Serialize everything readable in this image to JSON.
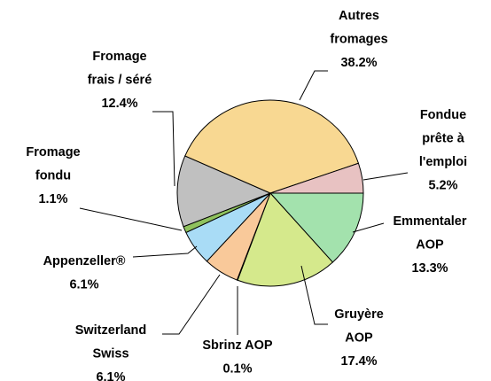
{
  "chart_data": {
    "type": "pie",
    "categories": [
      [
        "Emmentaler",
        "AOP"
      ],
      [
        "Gruyère",
        "AOP"
      ],
      [
        "Sbrinz AOP"
      ],
      [
        "Switzerland",
        "Swiss"
      ],
      [
        "Appenzeller®"
      ],
      [
        "Fromage",
        "fondu"
      ],
      [
        "Fromage",
        "frais / séré"
      ],
      [
        "Autres",
        "fromages"
      ],
      [
        "Fondue",
        "prête à",
        "l'emploi"
      ]
    ],
    "values": [
      13.3,
      17.4,
      0.1,
      6.1,
      6.1,
      1.1,
      12.4,
      38.2,
      5.2
    ],
    "value_labels": [
      "13.3%",
      "17.4%",
      "0.1%",
      "6.1%",
      "6.1%",
      "1.1%",
      "12.4%",
      "38.2%",
      "5.2%"
    ],
    "colors": [
      "#a3e2ad",
      "#d5e98c",
      "#f2b7a6",
      "#f9c99a",
      "#a9dcf6",
      "#8fc25e",
      "#c0c0c0",
      "#f8d892",
      "#e8c2c2"
    ]
  }
}
